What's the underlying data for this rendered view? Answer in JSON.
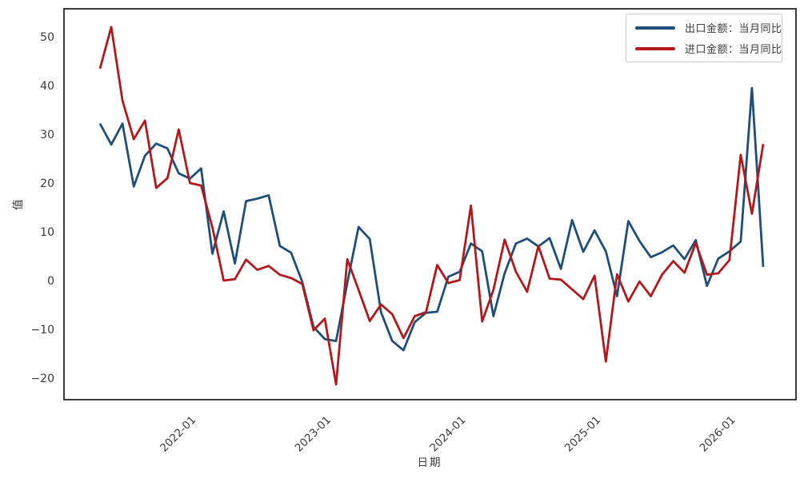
{
  "chart_data": {
    "type": "line",
    "title": "",
    "xlabel": "日期",
    "ylabel": "值",
    "grid": false,
    "legend_position": "upper right",
    "axes_color": "#262626",
    "tick_label_color": "#3a3a3a",
    "ylim": [
      -24.4,
      55.7
    ],
    "y_ticks": [
      50,
      40,
      30,
      20,
      10,
      0,
      -10,
      -20
    ],
    "x_ticks": [
      "2022-01",
      "2023-01",
      "2024-01",
      "2025-01",
      "2026-01"
    ],
    "x": [
      "2021-04",
      "2021-05",
      "2021-06",
      "2021-07",
      "2021-08",
      "2021-09",
      "2021-10",
      "2021-11",
      "2021-12",
      "2022-01",
      "2022-02",
      "2022-03",
      "2022-04",
      "2022-05",
      "2022-06",
      "2022-07",
      "2022-08",
      "2022-09",
      "2022-10",
      "2022-11",
      "2022-12",
      "2023-01",
      "2023-02",
      "2023-03",
      "2023-04",
      "2023-05",
      "2023-06",
      "2023-07",
      "2023-08",
      "2023-09",
      "2023-10",
      "2023-11",
      "2023-12",
      "2024-01",
      "2024-02",
      "2024-03",
      "2024-04",
      "2024-05",
      "2024-06",
      "2024-07",
      "2024-08",
      "2024-09",
      "2024-10",
      "2024-11",
      "2024-12",
      "2025-01",
      "2025-02",
      "2025-03",
      "2025-04",
      "2025-05",
      "2025-06",
      "2025-07",
      "2025-08",
      "2025-09",
      "2025-10",
      "2025-11",
      "2025-12",
      "2026-01",
      "2026-02",
      "2026-03"
    ],
    "series": [
      {
        "name": "出口金额：当月同比",
        "color": "#1f4e79",
        "values": [
          32.2,
          27.9,
          32.2,
          19.3,
          25.6,
          28.1,
          27.1,
          22.0,
          20.9,
          23.0,
          5.5,
          14.2,
          3.5,
          16.3,
          16.8,
          17.5,
          7.1,
          5.7,
          -0.3,
          -9.5,
          -12.0,
          -12.4,
          -0.5,
          11.0,
          8.5,
          -6.5,
          -12.4,
          -14.3,
          -8.5,
          -6.6,
          -6.4,
          0.8,
          1.8,
          7.6,
          6.0,
          -7.3,
          1.5,
          7.6,
          8.6,
          7.0,
          8.7,
          2.4,
          12.4,
          5.9,
          10.3,
          6.0,
          -3.2,
          12.2,
          8.1,
          4.8,
          5.8,
          7.2,
          4.4,
          8.3,
          -1.1,
          4.5,
          6.0,
          8.0,
          39.5,
          2.8
        ]
      },
      {
        "name": "进口金额：当月同比",
        "color": "#b2191d",
        "values": [
          43.5,
          52.0,
          36.9,
          29.0,
          32.8,
          19.0,
          21.0,
          31.0,
          20.0,
          19.5,
          10.9,
          0.0,
          0.3,
          4.3,
          2.2,
          3.0,
          1.2,
          0.5,
          -0.7,
          -10.2,
          -7.8,
          -21.3,
          4.4,
          -1.9,
          -8.3,
          -4.9,
          -6.9,
          -11.8,
          -7.3,
          -6.5,
          3.2,
          -0.5,
          0.1,
          15.4,
          -8.4,
          -1.9,
          8.4,
          1.8,
          -2.3,
          7.1,
          0.4,
          0.2,
          -1.8,
          -3.8,
          1.0,
          -16.6,
          1.3,
          -4.3,
          -0.2,
          -3.2,
          1.2,
          4.0,
          1.6,
          7.7,
          1.2,
          1.5,
          4.2,
          25.8,
          13.7,
          28.0
        ]
      }
    ]
  }
}
